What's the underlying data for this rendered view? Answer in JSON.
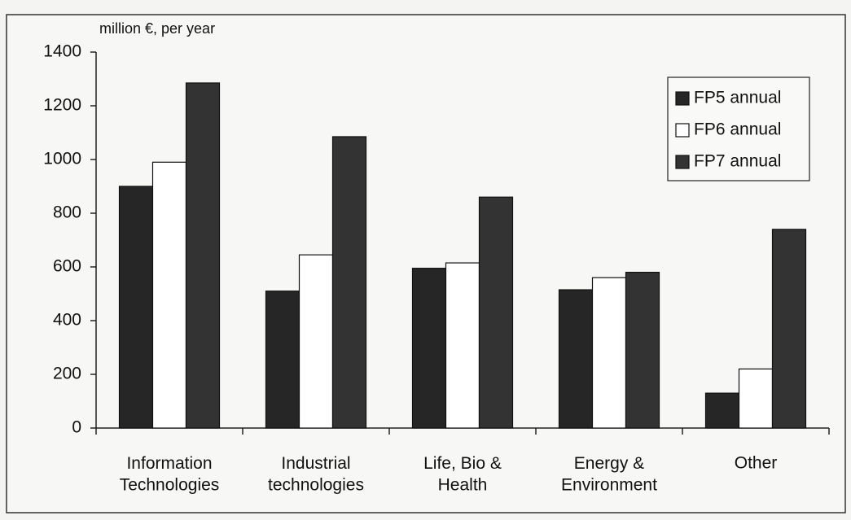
{
  "chart_data": {
    "type": "bar",
    "y_label": "million €, per year",
    "categories": [
      "Information\nTechnologies",
      "Industrial\ntechnologies",
      "Life, Bio &\nHealth",
      "Energy &\nEnvironment",
      "Other"
    ],
    "series": [
      {
        "name": "FP5 annual",
        "color": "#262626",
        "values": [
          900,
          510,
          595,
          515,
          130
        ]
      },
      {
        "name": "FP6 annual",
        "color": "#ffffff",
        "values": [
          990,
          645,
          615,
          560,
          220
        ]
      },
      {
        "name": "FP7 annual",
        "color": "#333333",
        "values": [
          1285,
          1085,
          860,
          580,
          740
        ]
      }
    ],
    "ylim": [
      0,
      1400
    ],
    "yticks": [
      0,
      200,
      400,
      600,
      800,
      1000,
      1200,
      1400
    ],
    "grid": false,
    "legend": "upper right"
  }
}
